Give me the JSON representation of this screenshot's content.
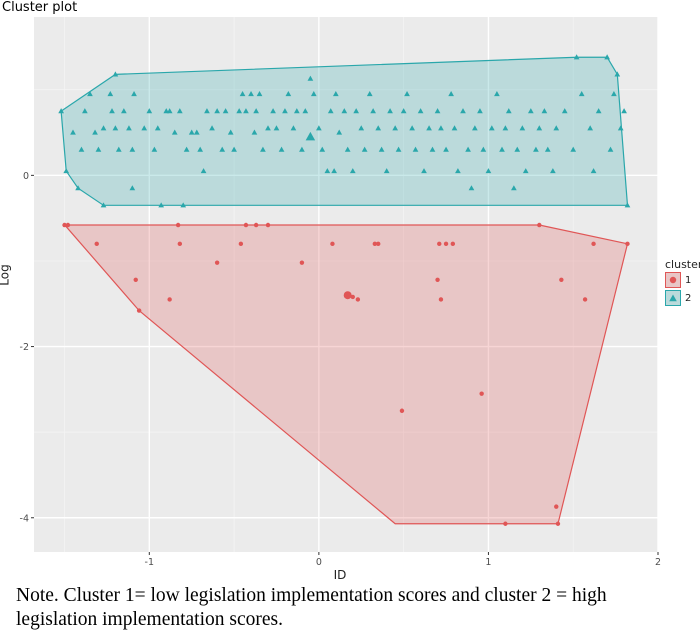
{
  "chart_data": {
    "type": "scatter",
    "title": "Cluster plot",
    "xlabel": "ID",
    "ylabel": "Log",
    "xlim": [
      -1.68,
      2.0
    ],
    "ylim": [
      -4.4,
      1.85
    ],
    "xticks": [
      -1,
      0,
      1,
      2
    ],
    "yticks": [
      -4,
      -2,
      0
    ],
    "xtick_labels": [
      "-1",
      "0",
      "1",
      "2"
    ],
    "ytick_labels": [
      "-4",
      "-2",
      "0"
    ],
    "grid": true,
    "legend_title": "cluster",
    "legend_position": "right",
    "series": [
      {
        "name": "1",
        "color": "#e05656",
        "marker": "circle",
        "hull": [
          [
            -1.5,
            -0.58
          ],
          [
            1.3,
            -0.58
          ],
          [
            1.82,
            -0.8
          ],
          [
            1.41,
            -4.07
          ],
          [
            0.45,
            -4.07
          ],
          [
            -1.06,
            -1.58
          ],
          [
            -1.49,
            -0.6
          ]
        ],
        "points": [
          [
            -1.5,
            -0.58
          ],
          [
            -1.48,
            -0.58
          ],
          [
            -1.31,
            -0.8
          ],
          [
            -1.08,
            -1.22
          ],
          [
            -1.06,
            -1.58
          ],
          [
            -0.88,
            -1.45
          ],
          [
            -0.83,
            -0.58
          ],
          [
            -0.82,
            -0.8
          ],
          [
            -0.6,
            -1.02
          ],
          [
            -0.46,
            -0.8
          ],
          [
            -0.43,
            -0.58
          ],
          [
            -0.37,
            -0.58
          ],
          [
            -0.3,
            -0.58
          ],
          [
            -0.1,
            -1.02
          ],
          [
            0.08,
            -0.8
          ],
          [
            0.2,
            -1.42
          ],
          [
            0.23,
            -1.45
          ],
          [
            0.33,
            -0.8
          ],
          [
            0.35,
            -0.8
          ],
          [
            0.49,
            -2.75
          ],
          [
            0.7,
            -1.22
          ],
          [
            0.71,
            -0.8
          ],
          [
            0.72,
            -1.45
          ],
          [
            0.75,
            -0.8
          ],
          [
            0.79,
            -0.8
          ],
          [
            0.96,
            -2.55
          ],
          [
            1.1,
            -4.07
          ],
          [
            1.3,
            -0.58
          ],
          [
            1.4,
            -3.87
          ],
          [
            1.41,
            -4.07
          ],
          [
            1.43,
            -1.22
          ],
          [
            1.57,
            -1.45
          ],
          [
            1.62,
            -0.8
          ],
          [
            1.82,
            -0.8
          ]
        ],
        "center": [
          0.17,
          -1.4
        ]
      },
      {
        "name": "2",
        "color": "#2aa7ab",
        "marker": "triangle",
        "hull": [
          [
            -1.52,
            0.75
          ],
          [
            -1.2,
            1.18
          ],
          [
            1.52,
            1.38
          ],
          [
            1.7,
            1.38
          ],
          [
            1.76,
            1.18
          ],
          [
            1.82,
            -0.35
          ],
          [
            -1.27,
            -0.35
          ],
          [
            -1.42,
            -0.15
          ],
          [
            -1.49,
            0.05
          ]
        ],
        "points": [
          [
            -1.52,
            0.75
          ],
          [
            -1.49,
            0.05
          ],
          [
            -1.45,
            0.5
          ],
          [
            -1.42,
            -0.15
          ],
          [
            -1.4,
            0.3
          ],
          [
            -1.38,
            0.75
          ],
          [
            -1.35,
            0.95
          ],
          [
            -1.32,
            0.5
          ],
          [
            -1.3,
            0.3
          ],
          [
            -1.27,
            -0.35
          ],
          [
            -1.27,
            0.55
          ],
          [
            -1.23,
            0.95
          ],
          [
            -1.22,
            0.75
          ],
          [
            -1.2,
            0.55
          ],
          [
            -1.2,
            1.18
          ],
          [
            -1.18,
            0.3
          ],
          [
            -1.15,
            0.75
          ],
          [
            -1.12,
            0.55
          ],
          [
            -1.1,
            0.3
          ],
          [
            -1.09,
            0.95
          ],
          [
            -1.1,
            -0.15
          ],
          [
            -1.03,
            0.55
          ],
          [
            -1.0,
            0.75
          ],
          [
            -0.97,
            0.3
          ],
          [
            -0.95,
            0.55
          ],
          [
            -0.93,
            -0.35
          ],
          [
            -0.9,
            0.75
          ],
          [
            -0.88,
            0.75
          ],
          [
            -0.85,
            0.5
          ],
          [
            -0.82,
            0.75
          ],
          [
            -0.8,
            -0.35
          ],
          [
            -0.78,
            0.3
          ],
          [
            -0.75,
            0.5
          ],
          [
            -0.72,
            0.5
          ],
          [
            -0.7,
            0.3
          ],
          [
            -0.68,
            0.05
          ],
          [
            -0.66,
            0.75
          ],
          [
            -0.63,
            0.55
          ],
          [
            -0.6,
            0.75
          ],
          [
            -0.57,
            0.3
          ],
          [
            -0.55,
            0.75
          ],
          [
            -0.52,
            0.5
          ],
          [
            -0.5,
            0.3
          ],
          [
            -0.47,
            0.75
          ],
          [
            -0.45,
            0.95
          ],
          [
            -0.43,
            0.75
          ],
          [
            -0.4,
            0.95
          ],
          [
            -0.38,
            0.5
          ],
          [
            -0.37,
            0.75
          ],
          [
            -0.35,
            0.95
          ],
          [
            -0.33,
            0.3
          ],
          [
            -0.3,
            0.55
          ],
          [
            -0.27,
            0.75
          ],
          [
            -0.25,
            0.55
          ],
          [
            -0.22,
            0.3
          ],
          [
            -0.2,
            0.75
          ],
          [
            -0.18,
            0.95
          ],
          [
            -0.15,
            0.55
          ],
          [
            -0.13,
            0.75
          ],
          [
            -0.1,
            0.3
          ],
          [
            -0.08,
            0.75
          ],
          [
            -0.05,
            1.13
          ],
          [
            -0.03,
            0.95
          ],
          [
            0.0,
            0.55
          ],
          [
            0.02,
            0.3
          ],
          [
            0.05,
            0.05
          ],
          [
            0.07,
            0.75
          ],
          [
            0.09,
            0.05
          ],
          [
            0.1,
            0.95
          ],
          [
            0.12,
            0.5
          ],
          [
            0.15,
            0.75
          ],
          [
            0.17,
            0.3
          ],
          [
            0.2,
            0.05
          ],
          [
            0.22,
            0.75
          ],
          [
            0.25,
            0.55
          ],
          [
            0.27,
            0.3
          ],
          [
            0.3,
            0.95
          ],
          [
            0.32,
            0.75
          ],
          [
            0.35,
            0.55
          ],
          [
            0.37,
            0.3
          ],
          [
            0.4,
            0.05
          ],
          [
            0.42,
            0.75
          ],
          [
            0.45,
            0.55
          ],
          [
            0.47,
            0.3
          ],
          [
            0.5,
            0.75
          ],
          [
            0.52,
            0.95
          ],
          [
            0.55,
            0.55
          ],
          [
            0.57,
            0.3
          ],
          [
            0.6,
            0.75
          ],
          [
            0.62,
            0.05
          ],
          [
            0.65,
            0.55
          ],
          [
            0.67,
            0.3
          ],
          [
            0.7,
            0.75
          ],
          [
            0.72,
            0.55
          ],
          [
            0.75,
            0.3
          ],
          [
            0.78,
            0.95
          ],
          [
            0.8,
            0.55
          ],
          [
            0.82,
            0.05
          ],
          [
            0.85,
            0.75
          ],
          [
            0.88,
            0.3
          ],
          [
            0.9,
            -0.15
          ],
          [
            0.92,
            0.55
          ],
          [
            0.95,
            0.75
          ],
          [
            0.97,
            0.3
          ],
          [
            1.0,
            0.05
          ],
          [
            1.02,
            0.55
          ],
          [
            1.05,
            0.95
          ],
          [
            1.08,
            0.3
          ],
          [
            1.1,
            0.55
          ],
          [
            1.12,
            0.75
          ],
          [
            1.15,
            -0.15
          ],
          [
            1.17,
            0.3
          ],
          [
            1.2,
            0.55
          ],
          [
            1.22,
            0.05
          ],
          [
            1.25,
            0.75
          ],
          [
            1.28,
            0.3
          ],
          [
            1.3,
            0.55
          ],
          [
            1.33,
            0.75
          ],
          [
            1.35,
            0.3
          ],
          [
            1.38,
            0.05
          ],
          [
            1.4,
            0.55
          ],
          [
            1.45,
            0.75
          ],
          [
            1.5,
            0.3
          ],
          [
            1.52,
            1.38
          ],
          [
            1.55,
            0.95
          ],
          [
            1.6,
            0.55
          ],
          [
            1.62,
            0.05
          ],
          [
            1.65,
            0.75
          ],
          [
            1.7,
            1.38
          ],
          [
            1.72,
            0.3
          ],
          [
            1.74,
            0.95
          ],
          [
            1.76,
            1.18
          ],
          [
            1.78,
            0.55
          ],
          [
            1.8,
            0.75
          ],
          [
            1.82,
            -0.35
          ]
        ],
        "center": [
          -0.05,
          0.45
        ]
      }
    ]
  },
  "note": "Note. Cluster 1= low legislation implementation scores and cluster 2 = high legislation implementation scores."
}
